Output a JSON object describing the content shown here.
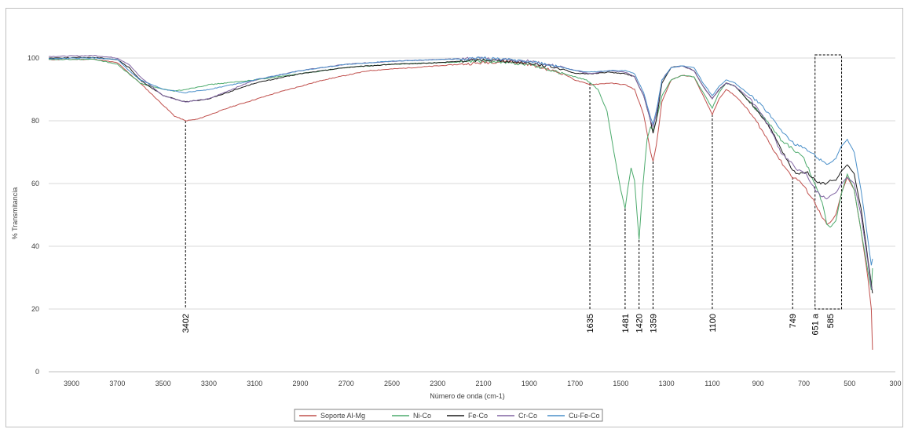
{
  "chart_data": {
    "type": "line",
    "title": "",
    "xlabel": "Número de onda (cm-1)",
    "ylabel": "% Transmitancia",
    "xlim": [
      4000,
      300
    ],
    "ylim": [
      0,
      110
    ],
    "x_reversed": true,
    "grid": "horizontal",
    "legend_position": "bottom",
    "x_ticks": [
      3900,
      3700,
      3500,
      3300,
      3100,
      2900,
      2700,
      2500,
      2300,
      2100,
      1900,
      1700,
      1500,
      1300,
      1100,
      900,
      700,
      500,
      300
    ],
    "y_ticks": [
      0,
      20,
      40,
      60,
      80,
      100
    ],
    "series": [
      {
        "name": "Soporte Al-Mg",
        "color": "#c0504d",
        "points": [
          [
            4000,
            99.5
          ],
          [
            3800,
            99.6
          ],
          [
            3700,
            98.5
          ],
          [
            3600,
            92
          ],
          [
            3500,
            85
          ],
          [
            3450,
            81.5
          ],
          [
            3402,
            80
          ],
          [
            3350,
            80.5
          ],
          [
            3200,
            84.5
          ],
          [
            3000,
            89
          ],
          [
            2800,
            93
          ],
          [
            2600,
            96
          ],
          [
            2400,
            97
          ],
          [
            2200,
            98
          ],
          [
            2100,
            98.5
          ],
          [
            2000,
            99
          ],
          [
            1900,
            98
          ],
          [
            1750,
            95
          ],
          [
            1700,
            93
          ],
          [
            1635,
            91.5
          ],
          [
            1550,
            92
          ],
          [
            1481,
            91.5
          ],
          [
            1440,
            90
          ],
          [
            1400,
            82
          ],
          [
            1370,
            70
          ],
          [
            1359,
            67
          ],
          [
            1345,
            72
          ],
          [
            1320,
            86
          ],
          [
            1280,
            93
          ],
          [
            1230,
            94.5
          ],
          [
            1180,
            94
          ],
          [
            1140,
            88
          ],
          [
            1100,
            82
          ],
          [
            1070,
            87
          ],
          [
            1040,
            90
          ],
          [
            1000,
            88
          ],
          [
            950,
            84
          ],
          [
            900,
            79
          ],
          [
            850,
            73
          ],
          [
            800,
            67
          ],
          [
            749,
            62
          ],
          [
            720,
            61
          ],
          [
            690,
            58
          ],
          [
            651,
            54
          ],
          [
            620,
            49
          ],
          [
            600,
            47
          ],
          [
            585,
            47.5
          ],
          [
            560,
            50
          ],
          [
            535,
            57
          ],
          [
            510,
            62
          ],
          [
            480,
            58
          ],
          [
            450,
            45
          ],
          [
            420,
            30
          ],
          [
            405,
            20
          ],
          [
            400,
            7
          ]
        ]
      },
      {
        "name": "Ni-Co",
        "color": "#4dab6d",
        "points": [
          [
            4000,
            99.5
          ],
          [
            3800,
            99.6
          ],
          [
            3700,
            98
          ],
          [
            3650,
            95
          ],
          [
            3600,
            92
          ],
          [
            3500,
            90
          ],
          [
            3450,
            89.5
          ],
          [
            3402,
            90
          ],
          [
            3300,
            91.5
          ],
          [
            3100,
            93
          ],
          [
            2900,
            95
          ],
          [
            2700,
            97
          ],
          [
            2500,
            98
          ],
          [
            2300,
            98.5
          ],
          [
            2100,
            99
          ],
          [
            1900,
            98
          ],
          [
            1750,
            95
          ],
          [
            1700,
            94
          ],
          [
            1650,
            93
          ],
          [
            1600,
            90
          ],
          [
            1560,
            83
          ],
          [
            1530,
            70
          ],
          [
            1500,
            58
          ],
          [
            1481,
            52
          ],
          [
            1470,
            58
          ],
          [
            1455,
            65
          ],
          [
            1440,
            61
          ],
          [
            1420,
            42
          ],
          [
            1405,
            58
          ],
          [
            1385,
            74
          ],
          [
            1370,
            78
          ],
          [
            1359,
            77
          ],
          [
            1345,
            80
          ],
          [
            1320,
            88
          ],
          [
            1280,
            93
          ],
          [
            1230,
            94.5
          ],
          [
            1180,
            94
          ],
          [
            1140,
            89
          ],
          [
            1100,
            84
          ],
          [
            1070,
            89
          ],
          [
            1040,
            92
          ],
          [
            1000,
            91
          ],
          [
            950,
            87
          ],
          [
            900,
            83
          ],
          [
            850,
            79
          ],
          [
            800,
            74
          ],
          [
            749,
            71
          ],
          [
            700,
            68
          ],
          [
            651,
            60
          ],
          [
            620,
            54
          ],
          [
            600,
            47
          ],
          [
            585,
            46
          ],
          [
            560,
            48
          ],
          [
            535,
            57
          ],
          [
            510,
            63
          ],
          [
            480,
            58
          ],
          [
            450,
            45
          ],
          [
            420,
            32
          ],
          [
            405,
            26
          ],
          [
            400,
            33
          ]
        ]
      },
      {
        "name": "Fe-Co",
        "color": "#1a1a1a",
        "points": [
          [
            4000,
            100
          ],
          [
            3800,
            100.2
          ],
          [
            3700,
            99.5
          ],
          [
            3650,
            97
          ],
          [
            3600,
            93
          ],
          [
            3500,
            88
          ],
          [
            3402,
            86
          ],
          [
            3300,
            87
          ],
          [
            3100,
            92
          ],
          [
            2900,
            95
          ],
          [
            2700,
            97
          ],
          [
            2500,
            98
          ],
          [
            2300,
            98.5
          ],
          [
            2100,
            99.5
          ],
          [
            1900,
            98.5
          ],
          [
            1750,
            96.5
          ],
          [
            1700,
            95
          ],
          [
            1635,
            95
          ],
          [
            1550,
            95.5
          ],
          [
            1481,
            95
          ],
          [
            1440,
            94
          ],
          [
            1400,
            88
          ],
          [
            1370,
            80
          ],
          [
            1359,
            76
          ],
          [
            1345,
            80
          ],
          [
            1320,
            92
          ],
          [
            1280,
            97
          ],
          [
            1230,
            97.5
          ],
          [
            1180,
            96
          ],
          [
            1140,
            91
          ],
          [
            1100,
            87
          ],
          [
            1070,
            90
          ],
          [
            1040,
            92
          ],
          [
            1000,
            91
          ],
          [
            950,
            87
          ],
          [
            900,
            83
          ],
          [
            850,
            78
          ],
          [
            800,
            71
          ],
          [
            749,
            64
          ],
          [
            720,
            63
          ],
          [
            690,
            64
          ],
          [
            651,
            61
          ],
          [
            620,
            60
          ],
          [
            600,
            60
          ],
          [
            585,
            61
          ],
          [
            560,
            61
          ],
          [
            535,
            64
          ],
          [
            510,
            66
          ],
          [
            480,
            63
          ],
          [
            450,
            52
          ],
          [
            420,
            36
          ],
          [
            405,
            28
          ],
          [
            400,
            25
          ]
        ]
      },
      {
        "name": "Cr-Co",
        "color": "#8064a2",
        "points": [
          [
            4000,
            100.5
          ],
          [
            3800,
            100.8
          ],
          [
            3700,
            100
          ],
          [
            3650,
            98
          ],
          [
            3600,
            94
          ],
          [
            3500,
            88
          ],
          [
            3402,
            86
          ],
          [
            3300,
            87
          ],
          [
            3100,
            93
          ],
          [
            2900,
            96
          ],
          [
            2700,
            98
          ],
          [
            2500,
            99
          ],
          [
            2300,
            99.5
          ],
          [
            2100,
            100
          ],
          [
            1900,
            99
          ],
          [
            1750,
            97
          ],
          [
            1700,
            96
          ],
          [
            1635,
            95
          ],
          [
            1550,
            96
          ],
          [
            1481,
            95.5
          ],
          [
            1440,
            94
          ],
          [
            1400,
            88
          ],
          [
            1370,
            80
          ],
          [
            1359,
            78
          ],
          [
            1345,
            82
          ],
          [
            1320,
            93
          ],
          [
            1280,
            97
          ],
          [
            1230,
            97.5
          ],
          [
            1180,
            96
          ],
          [
            1140,
            91
          ],
          [
            1100,
            87
          ],
          [
            1070,
            90
          ],
          [
            1040,
            92
          ],
          [
            1000,
            91
          ],
          [
            950,
            88
          ],
          [
            900,
            84
          ],
          [
            850,
            78
          ],
          [
            800,
            70
          ],
          [
            749,
            66
          ],
          [
            720,
            64
          ],
          [
            690,
            63
          ],
          [
            651,
            58
          ],
          [
            620,
            56
          ],
          [
            600,
            55
          ],
          [
            585,
            56
          ],
          [
            560,
            57
          ],
          [
            535,
            60
          ],
          [
            510,
            62
          ],
          [
            480,
            60
          ],
          [
            450,
            50
          ],
          [
            420,
            35
          ],
          [
            405,
            27
          ],
          [
            400,
            26
          ]
        ]
      },
      {
        "name": "Cu-Fe-Co",
        "color": "#4a8fc9",
        "points": [
          [
            4000,
            99.8
          ],
          [
            3800,
            100
          ],
          [
            3700,
            99.5
          ],
          [
            3650,
            96
          ],
          [
            3600,
            93
          ],
          [
            3500,
            90
          ],
          [
            3402,
            89
          ],
          [
            3300,
            90
          ],
          [
            3100,
            93
          ],
          [
            2900,
            96
          ],
          [
            2700,
            98
          ],
          [
            2500,
            99
          ],
          [
            2300,
            99.5
          ],
          [
            2100,
            100
          ],
          [
            1900,
            99
          ],
          [
            1750,
            97
          ],
          [
            1700,
            96
          ],
          [
            1635,
            95.5
          ],
          [
            1550,
            96
          ],
          [
            1481,
            96
          ],
          [
            1440,
            95
          ],
          [
            1400,
            89
          ],
          [
            1370,
            81
          ],
          [
            1359,
            79
          ],
          [
            1345,
            83
          ],
          [
            1320,
            93
          ],
          [
            1280,
            97
          ],
          [
            1230,
            97.5
          ],
          [
            1180,
            97
          ],
          [
            1140,
            92
          ],
          [
            1100,
            88
          ],
          [
            1070,
            91
          ],
          [
            1040,
            93
          ],
          [
            1000,
            92
          ],
          [
            950,
            89
          ],
          [
            900,
            86
          ],
          [
            850,
            82
          ],
          [
            800,
            77
          ],
          [
            749,
            73
          ],
          [
            720,
            72
          ],
          [
            690,
            71
          ],
          [
            651,
            69
          ],
          [
            620,
            67
          ],
          [
            600,
            66
          ],
          [
            585,
            66.5
          ],
          [
            560,
            68
          ],
          [
            535,
            72
          ],
          [
            510,
            74
          ],
          [
            480,
            70
          ],
          [
            450,
            58
          ],
          [
            420,
            42
          ],
          [
            405,
            34
          ],
          [
            400,
            36
          ]
        ]
      }
    ],
    "annotations": [
      {
        "label": "3402",
        "x": 3402,
        "y_top": 80
      },
      {
        "label": "1635",
        "x": 1635,
        "y_top": 92
      },
      {
        "label": "1481",
        "x": 1481,
        "y_top": 52
      },
      {
        "label": "1420",
        "x": 1420,
        "y_top": 42
      },
      {
        "label": "1359",
        "x": 1359,
        "y_top": 67
      },
      {
        "label": "1100",
        "x": 1100,
        "y_top": 82
      },
      {
        "label": "749",
        "x": 749,
        "y_top": 62
      },
      {
        "label": "651 a",
        "x": 651
      },
      {
        "label": "585",
        "x": 585
      }
    ],
    "highlight_box": {
      "x_from": 651,
      "x_to": 535,
      "y_from": 20,
      "y_to": 101
    }
  }
}
